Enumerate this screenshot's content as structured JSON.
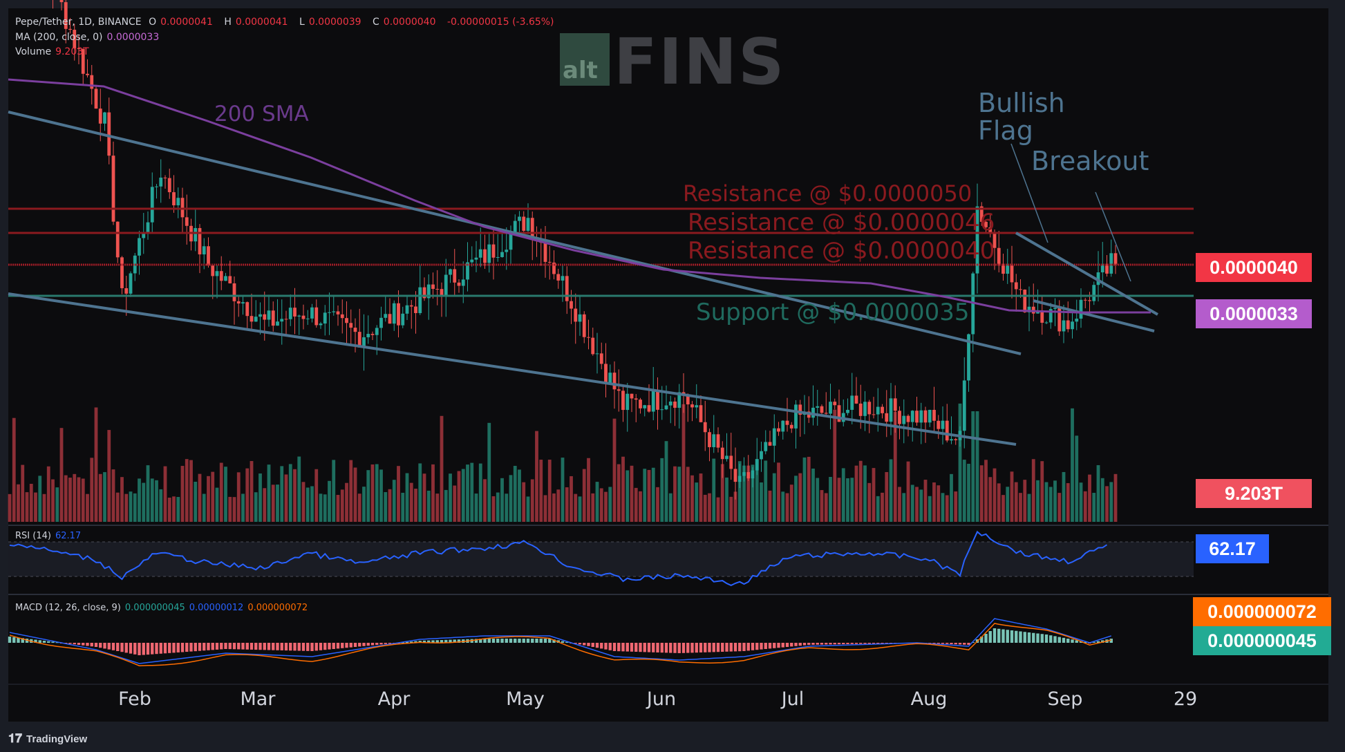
{
  "header": {
    "symbol": "Pepe/Tether, 1D, BINANCE",
    "o_label": "O",
    "o": "0.0000041",
    "h_label": "H",
    "h": "0.0000041",
    "l_label": "L",
    "l": "0.0000039",
    "c_label": "C",
    "c": "0.0000040",
    "change": "-0.00000015 (-3.65%)",
    "ma_label": "MA (200, close, 0)",
    "ma_value": "0.0000033",
    "volume_label": "Volume",
    "volume_value": "9.203T"
  },
  "logo": {
    "prefix": "alt",
    "name": "FINS"
  },
  "annotations": {
    "sma": "200 SMA",
    "flag_1": "Bullish",
    "flag_2": "Flag",
    "breakout": "Breakout",
    "res_50": "Resistance @ $0.0000050",
    "res_46": "Resistance @ $0.0000046",
    "res_40": "Resistance @ $0.0000040",
    "support": "Support @ $0.0000035"
  },
  "price_tags": {
    "last": "0.0000040",
    "ma": "0.0000033",
    "volume": "9.203T",
    "rsi": "62.17",
    "macd_signal": "0.000000072",
    "macd_line": "0.000000045"
  },
  "rsi": {
    "label": "RSI (14)",
    "value": "62.17"
  },
  "macd": {
    "label": "MACD (12, 26, close, 9)",
    "hist": "0.000000045",
    "macd": "0.00000012",
    "signal": "0.000000072"
  },
  "xaxis": [
    "Feb",
    "Mar",
    "Apr",
    "May",
    "Jun",
    "Jul",
    "Aug",
    "Sep",
    "29"
  ],
  "footer": {
    "brand": "TradingView"
  },
  "colors": {
    "up": "#26a69a",
    "down": "#ef5350",
    "sma": "#7b3f9e",
    "trend": "#4e7490",
    "resistance": "#8b1a1f",
    "support": "#2a7a6e",
    "rsi": "#2962ff",
    "macd": "#2962ff",
    "signal": "#ff6d00"
  },
  "chart_data": {
    "type": "candlestick",
    "title": "Pepe/Tether, 1D, BINANCE",
    "x_range": [
      "Jan",
      "Sep 29"
    ],
    "close_points": [
      [
        "Jan 10",
        7e-06
      ],
      [
        "Jan 20",
        6.4e-06
      ],
      [
        "Feb 1",
        5.2e-06
      ],
      [
        "Feb 5",
        3.6e-06
      ],
      [
        "Feb 14",
        4.8e-06
      ],
      [
        "Feb 25",
        4e-06
      ],
      [
        "Mar 10",
        3.5e-06
      ],
      [
        "Mar 20",
        3.6e-06
      ],
      [
        "Apr 1",
        3.4e-06
      ],
      [
        "Apr 15",
        3.7e-06
      ],
      [
        "May 1",
        4.1e-06
      ],
      [
        "May 10",
        4.4e-06
      ],
      [
        "May 20",
        3.7e-06
      ],
      [
        "Jun 1",
        2.8e-06
      ],
      [
        "Jun 15",
        2.9e-06
      ],
      [
        "Jun 28",
        2.1e-06
      ],
      [
        "Jul 10",
        2.7e-06
      ],
      [
        "Jul 28",
        2.8e-06
      ],
      [
        "Aug 10",
        2.7e-06
      ],
      [
        "Aug 18",
        2.5e-06
      ],
      [
        "Aug 22",
        4.5e-06
      ],
      [
        "Sep 1",
        3.6e-06
      ],
      [
        "Sep 12",
        3.5e-06
      ],
      [
        "Sep 22",
        4e-06
      ]
    ],
    "horizontal_levels": [
      {
        "name": "Resistance @ $0.0000050",
        "value": 5e-06
      },
      {
        "name": "Resistance @ $0.0000046",
        "value": 4.6e-06
      },
      {
        "name": "Resistance @ $0.0000040",
        "value": 4e-06
      },
      {
        "name": "Support @ $0.0000035",
        "value": 3.5e-06
      }
    ],
    "indicators": {
      "ma_200_last": 3.3e-06,
      "volume_last": "9.203T",
      "rsi_last": 62.17,
      "macd_hist": 4.5e-08,
      "macd": 1.2e-07,
      "macd_signal": 7.2e-08
    }
  }
}
